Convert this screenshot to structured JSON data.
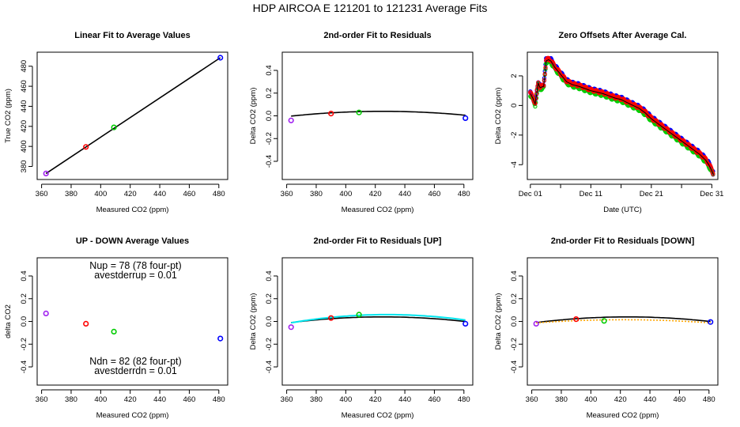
{
  "figure": {
    "suptitle": "HDP   AIRCOA E   121201 to 121231   Average Fits",
    "colors": {
      "purple": "#a020f0",
      "red": "#ff0000",
      "green": "#00cc00",
      "blue": "#0000ff",
      "cyan": "#00e5ee",
      "orange": "#ffa500",
      "black": "#000000",
      "magenta": "#ee00ee"
    }
  },
  "chart_data": [
    {
      "id": "p1",
      "type": "scatter",
      "title": "Linear Fit to Average Values",
      "xlabel": "Measured CO2 (ppm)",
      "ylabel": "True CO2 (ppm)",
      "xlim": [
        357,
        486
      ],
      "ylim": [
        367,
        494
      ],
      "xticks": [
        360,
        380,
        400,
        420,
        440,
        460,
        480
      ],
      "yticks": [
        380,
        400,
        420,
        440,
        460,
        480
      ],
      "points": [
        {
          "x": 363.0,
          "y": 373.0,
          "color": "purple"
        },
        {
          "x": 390.0,
          "y": 399.5,
          "color": "red"
        },
        {
          "x": 409.0,
          "y": 419.0,
          "color": "green"
        },
        {
          "x": 481.0,
          "y": 488.5,
          "color": "blue"
        }
      ],
      "lines": [
        {
          "x": [
            363,
            481
          ],
          "y": [
            373,
            488.5
          ],
          "color": "black"
        }
      ]
    },
    {
      "id": "p2",
      "type": "scatter",
      "title": "2nd-order Fit to Residuals",
      "xlabel": "Measured CO2 (ppm)",
      "ylabel": "Delta CO2 (ppm)",
      "xlim": [
        357,
        486
      ],
      "ylim": [
        -0.56,
        0.56
      ],
      "xticks": [
        360,
        380,
        400,
        420,
        440,
        460,
        480
      ],
      "yticks": [
        -0.4,
        -0.2,
        0.0,
        0.2,
        0.4
      ],
      "points": [
        {
          "x": 363.0,
          "y": -0.04,
          "color": "purple"
        },
        {
          "x": 390.0,
          "y": 0.02,
          "color": "red"
        },
        {
          "x": 409.0,
          "y": 0.03,
          "color": "green"
        },
        {
          "x": 481.0,
          "y": -0.02,
          "color": "blue"
        }
      ],
      "lines": [
        {
          "quad": {
            "v": 425,
            "k": 0.04,
            "a": 1.1e-05
          },
          "range": [
            363,
            481
          ],
          "color": "black"
        }
      ]
    },
    {
      "id": "p3",
      "type": "scatter",
      "title": "Zero Offsets After Average Cal.",
      "xlabel": "Date (UTC)",
      "ylabel": "Delta CO2 (ppm)",
      "xlim": [
        0.5,
        32.0
      ],
      "ylim": [
        -5.0,
        3.6
      ],
      "xticks": [
        1,
        6,
        11,
        16,
        21,
        26,
        31
      ],
      "xticklabels": [
        "Dec 01",
        "",
        "Dec 11",
        "",
        "Dec 21",
        "",
        "Dec 31"
      ],
      "yticks": [
        -4,
        -2,
        0,
        2
      ],
      "offsets_series": {
        "day": [
          1.0,
          1.4,
          1.8,
          2.3,
          2.6,
          3.2,
          3.6,
          4.0,
          4.4,
          5.0,
          6.0,
          7.0,
          8.0,
          9.0,
          10.0,
          11.0,
          12.0,
          13.0,
          14.0,
          15.0,
          16.0,
          17.0,
          18.0,
          19.0,
          20.0,
          21.0,
          22.0,
          23.0,
          24.0,
          25.0,
          26.0,
          27.0,
          28.0,
          29.0,
          30.0,
          30.5,
          31.0,
          31.3
        ],
        "value": [
          0.8,
          0.5,
          0.1,
          1.5,
          1.2,
          1.3,
          3.0,
          3.1,
          3.0,
          2.6,
          2.1,
          1.6,
          1.4,
          1.3,
          1.15,
          1.0,
          0.9,
          0.8,
          0.65,
          0.5,
          0.4,
          0.2,
          0.0,
          -0.2,
          -0.5,
          -0.9,
          -1.2,
          -1.5,
          -1.8,
          -2.1,
          -2.4,
          -2.7,
          -3.0,
          -3.3,
          -3.7,
          -4.0,
          -4.4,
          -4.7
        ]
      },
      "series_colors": [
        "magenta",
        "blue",
        "green",
        "red"
      ]
    },
    {
      "id": "p4",
      "type": "scatter",
      "title": "UP - DOWN Average Values",
      "xlabel": "Measured CO2 (ppm)",
      "ylabel": "delta CO2",
      "xlim": [
        357,
        486
      ],
      "ylim": [
        -0.56,
        0.56
      ],
      "xticks": [
        360,
        380,
        400,
        420,
        440,
        460,
        480
      ],
      "yticks": [
        -0.4,
        -0.2,
        0.0,
        0.2,
        0.4
      ],
      "points": [
        {
          "x": 363.0,
          "y": 0.07,
          "color": "purple"
        },
        {
          "x": 390.0,
          "y": -0.02,
          "color": "red"
        },
        {
          "x": 409.0,
          "y": -0.09,
          "color": "green"
        },
        {
          "x": 481.0,
          "y": -0.15,
          "color": "blue"
        }
      ],
      "annotations": {
        "nup": "Nup = 78 (78 four-pt)",
        "avestderrup": "avestderrup =  0.01",
        "ndn": "Ndn = 82 (82 four-pt)",
        "avestderrdn": "avestderrdn =  0.01"
      }
    },
    {
      "id": "p5",
      "type": "scatter",
      "title": "2nd-order Fit to Residuals [UP]",
      "xlabel": "Measured CO2 (ppm)",
      "ylabel": "Delta CO2 (ppm)",
      "xlim": [
        357,
        486
      ],
      "ylim": [
        -0.56,
        0.56
      ],
      "xticks": [
        360,
        380,
        400,
        420,
        440,
        460,
        480
      ],
      "yticks": [
        -0.4,
        -0.2,
        0.0,
        0.2,
        0.4
      ],
      "points": [
        {
          "x": 363.0,
          "y": -0.05,
          "color": "purple"
        },
        {
          "x": 390.0,
          "y": 0.03,
          "color": "red"
        },
        {
          "x": 409.0,
          "y": 0.06,
          "color": "green"
        },
        {
          "x": 481.0,
          "y": -0.02,
          "color": "blue"
        }
      ],
      "lines": [
        {
          "quad": {
            "v": 425,
            "k": 0.04,
            "a": 1.3e-05
          },
          "range": [
            363,
            481
          ],
          "color": "black"
        },
        {
          "quad": {
            "v": 428,
            "k": 0.06,
            "a": 1.7e-05
          },
          "range": [
            363,
            481
          ],
          "color": "cyan"
        }
      ]
    },
    {
      "id": "p6",
      "type": "scatter",
      "title": "2nd-order Fit to Residuals [DOWN]",
      "xlabel": "Measured CO2 (ppm)",
      "ylabel": "Delta CO2 (ppm)",
      "xlim": [
        357,
        486
      ],
      "ylim": [
        -0.56,
        0.56
      ],
      "xticks": [
        360,
        380,
        400,
        420,
        440,
        460,
        480
      ],
      "yticks": [
        -0.4,
        -0.2,
        0.0,
        0.2,
        0.4
      ],
      "points": [
        {
          "x": 363.0,
          "y": -0.02,
          "color": "purple"
        },
        {
          "x": 390.0,
          "y": 0.02,
          "color": "red"
        },
        {
          "x": 409.0,
          "y": 0.005,
          "color": "green"
        },
        {
          "x": 481.0,
          "y": -0.005,
          "color": "blue"
        }
      ],
      "lines": [
        {
          "quad": {
            "v": 425,
            "k": 0.04,
            "a": 1.3e-05
          },
          "range": [
            363,
            481
          ],
          "color": "black"
        },
        {
          "quad": {
            "v": 422,
            "k": 0.015,
            "a": 8e-06
          },
          "range": [
            363,
            481
          ],
          "color": "orange",
          "dashed": true
        }
      ]
    }
  ]
}
